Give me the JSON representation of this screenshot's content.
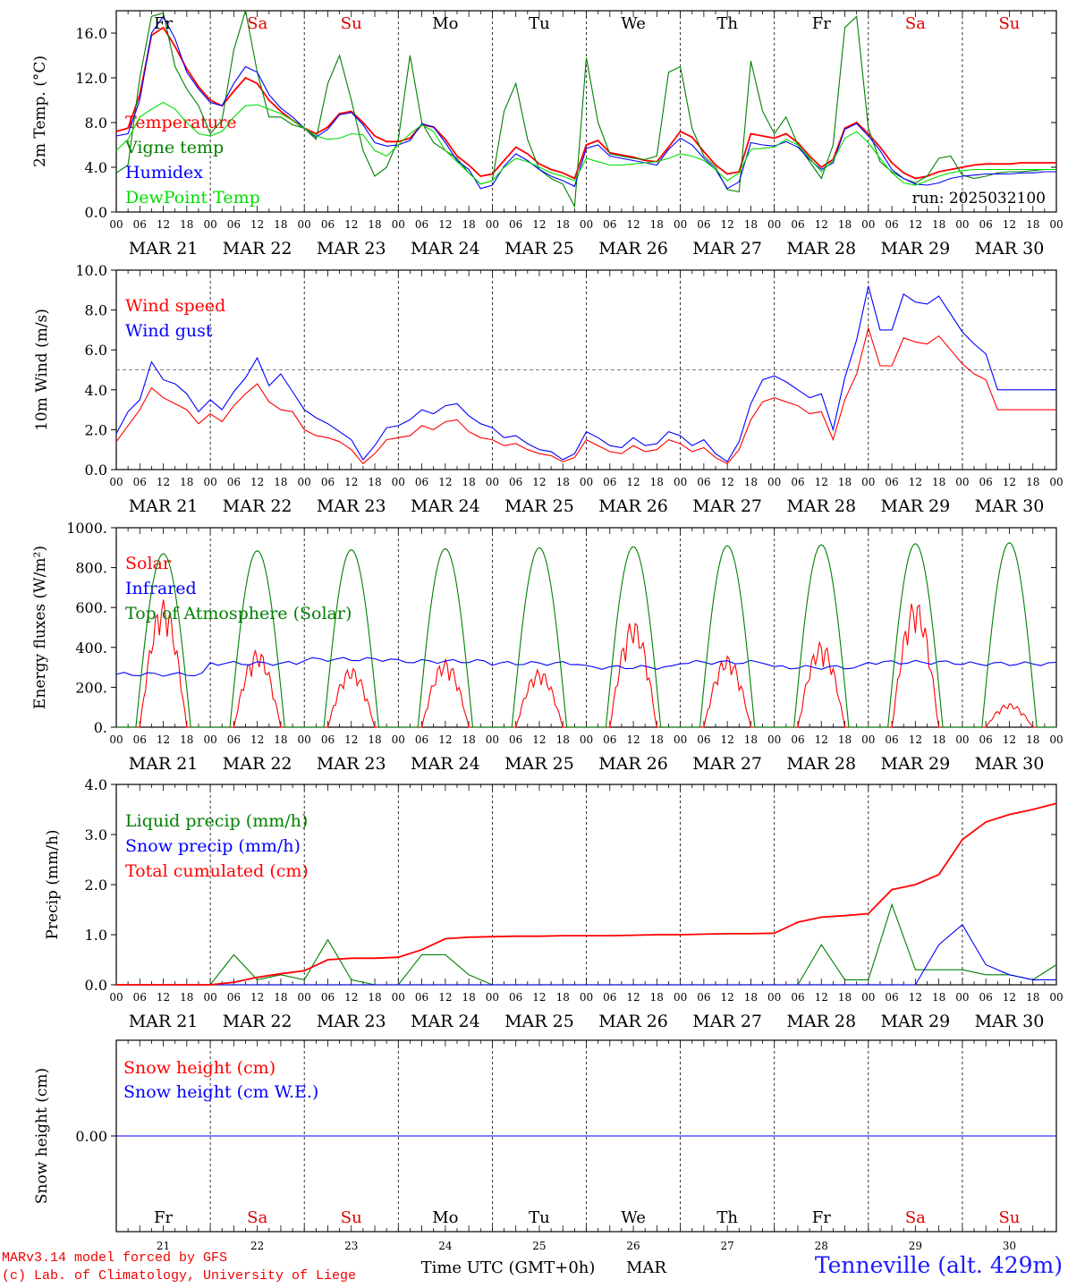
{
  "footer": {
    "credit_line1": "MARv3.14 model forced by GFS",
    "credit_line2": "(c) Lab. of Climatology, University of Liege",
    "location": "Tenneville (alt. 429m)"
  },
  "hour_ticks": [
    "00",
    "06",
    "12",
    "18"
  ],
  "date_labels": [
    "MAR 21",
    "MAR 22",
    "MAR 23",
    "MAR 24",
    "MAR 25",
    "MAR 26",
    "MAR 27",
    "MAR 28",
    "MAR 29",
    "MAR 30"
  ],
  "day_labels": [
    "Fr",
    "Sa",
    "Su",
    "Mo",
    "Tu",
    "We",
    "Th",
    "Fr",
    "Sa",
    "Su"
  ],
  "day_colors": [
    "#000000",
    "#e00000",
    "#e00000",
    "#000000",
    "#000000",
    "#000000",
    "#000000",
    "#000000",
    "#e00000",
    "#e00000"
  ],
  "bottom_day_numbers": [
    "21",
    "22",
    "23",
    "24",
    "25",
    "26",
    "27",
    "28",
    "29",
    "30"
  ],
  "bottom_axis_label": "Time UTC (GMT+0h)",
  "bottom_month_label": "MAR",
  "colors": {
    "red": "#ff0000",
    "green": "#008000",
    "blue": "#0000ff",
    "lightgreen": "#00dd00"
  },
  "chart_data": [
    {
      "type": "line",
      "id": "temp",
      "ylabel": "2m Temp. (°C)",
      "ylim": [
        0,
        18
      ],
      "yticks": [
        0,
        4,
        8,
        12,
        16
      ],
      "ytick_labels": [
        "0.0",
        "4.0",
        "8.0",
        "12.0",
        "16.0"
      ],
      "annotation": "run: 2025032100",
      "x_hours": [
        0,
        3,
        6,
        9,
        12,
        15,
        18,
        21,
        24,
        27,
        30,
        33,
        36,
        39,
        42,
        45,
        48,
        51,
        54,
        57,
        60,
        63,
        66,
        69,
        72,
        75,
        78,
        81,
        84,
        87,
        90,
        93,
        96,
        99,
        102,
        105,
        108,
        111,
        114,
        117,
        120,
        123,
        126,
        129,
        132,
        135,
        138,
        141,
        144,
        147,
        150,
        153,
        156,
        159,
        162,
        165,
        168,
        171,
        174,
        177,
        180,
        183,
        186,
        189,
        192,
        195,
        198,
        201,
        204,
        207,
        210,
        213,
        216,
        219,
        222,
        225,
        228,
        231,
        234,
        237,
        240
      ],
      "series": [
        {
          "name": "Temperature",
          "color": "#ff0000",
          "values": [
            7.2,
            7.5,
            10.5,
            15.8,
            16.5,
            14.8,
            12.8,
            11.2,
            10.0,
            9.5,
            10.8,
            12.0,
            11.5,
            10.0,
            9.0,
            8.2,
            7.5,
            7.0,
            7.6,
            8.8,
            9.0,
            8.0,
            6.8,
            6.3,
            6.3,
            6.6,
            7.8,
            7.6,
            6.5,
            5.0,
            4.2,
            3.2,
            3.4,
            4.6,
            5.8,
            5.2,
            4.3,
            3.8,
            3.5,
            3.0,
            6.0,
            6.4,
            5.3,
            5.1,
            4.9,
            4.6,
            4.5,
            5.8,
            7.2,
            6.7,
            5.4,
            4.2,
            3.4,
            3.6,
            7.0,
            6.8,
            6.6,
            7.0,
            6.2,
            5.0,
            4.0,
            4.7,
            7.5,
            8.0,
            7.0,
            5.8,
            4.4,
            3.5,
            3.0,
            3.2,
            3.6,
            3.8,
            4.0,
            4.2,
            4.3,
            4.3,
            4.3,
            4.4,
            4.4,
            4.4,
            4.4
          ]
        },
        {
          "name": "Vigne temp",
          "color": "#008000",
          "values": [
            3.5,
            4.2,
            12.0,
            17.5,
            17.8,
            13.0,
            11.0,
            9.5,
            7.0,
            8.2,
            14.5,
            18.0,
            12.5,
            8.5,
            8.5,
            7.8,
            7.5,
            6.5,
            11.5,
            14.0,
            10.0,
            5.5,
            3.2,
            4.0,
            6.5,
            14.0,
            8.0,
            6.2,
            5.5,
            4.8,
            3.5,
            2.5,
            2.8,
            9.0,
            11.5,
            6.5,
            3.8,
            3.0,
            2.5,
            0.5,
            13.8,
            8.0,
            5.2,
            5.0,
            4.8,
            4.7,
            5.0,
            12.5,
            13.0,
            7.5,
            5.0,
            4.0,
            2.0,
            1.8,
            13.5,
            9.0,
            7.0,
            8.5,
            6.0,
            4.5,
            3.0,
            6.0,
            16.5,
            17.5,
            7.5,
            4.5,
            3.6,
            3.0,
            2.6,
            3.2,
            4.8,
            5.0,
            3.3,
            3.0,
            3.2,
            3.5,
            3.6,
            3.6,
            3.7,
            3.8,
            3.8
          ]
        },
        {
          "name": "Humidex",
          "color": "#0000ff",
          "values": [
            6.8,
            7.0,
            10.0,
            16.0,
            17.5,
            15.5,
            12.5,
            11.0,
            9.8,
            9.5,
            11.5,
            13.0,
            12.5,
            10.5,
            9.3,
            8.5,
            7.5,
            6.7,
            7.4,
            8.7,
            8.9,
            7.8,
            6.2,
            5.9,
            6.0,
            6.4,
            7.9,
            7.6,
            6.2,
            4.6,
            3.8,
            2.1,
            2.4,
            4.1,
            5.2,
            4.6,
            3.8,
            3.2,
            2.8,
            2.3,
            5.7,
            6.0,
            5.0,
            4.8,
            4.6,
            4.4,
            4.2,
            5.6,
            6.6,
            6.0,
            4.8,
            3.8,
            2.1,
            2.7,
            6.2,
            6.0,
            5.9,
            6.3,
            5.8,
            4.7,
            3.8,
            4.4,
            7.4,
            7.9,
            6.8,
            5.5,
            3.8,
            3.0,
            2.5,
            2.4,
            2.6,
            3.0,
            3.2,
            3.3,
            3.4,
            3.4,
            3.4,
            3.5,
            3.5,
            3.6,
            3.6
          ]
        },
        {
          "name": "DewPoint Temp",
          "color": "#00dd00",
          "values": [
            5.5,
            6.5,
            8.5,
            9.2,
            9.8,
            9.2,
            8.0,
            7.0,
            6.8,
            7.2,
            8.5,
            9.5,
            9.6,
            9.2,
            8.8,
            8.2,
            7.5,
            6.8,
            6.5,
            6.6,
            7.0,
            6.9,
            5.5,
            5.0,
            6.0,
            7.0,
            7.8,
            7.2,
            5.5,
            4.5,
            3.5,
            2.5,
            2.8,
            4.0,
            4.8,
            4.5,
            4.0,
            3.5,
            3.2,
            2.8,
            4.8,
            4.5,
            4.2,
            4.2,
            4.3,
            4.4,
            4.5,
            4.8,
            5.2,
            5.0,
            4.6,
            3.8,
            2.8,
            3.5,
            5.6,
            5.7,
            5.8,
            6.5,
            6.0,
            4.8,
            3.6,
            4.6,
            6.6,
            7.2,
            6.2,
            4.8,
            3.5,
            2.6,
            2.4,
            2.8,
            3.2,
            3.5,
            3.7,
            3.8,
            3.8,
            3.8,
            3.8,
            3.8,
            3.8,
            3.8,
            3.8
          ]
        }
      ]
    },
    {
      "type": "line",
      "id": "wind",
      "ylabel": "10m Wind (m/s)",
      "ylim": [
        0,
        10
      ],
      "yticks": [
        0,
        2,
        4,
        6,
        8,
        10
      ],
      "ytick_labels": [
        "0.0",
        "2.0",
        "4.0",
        "6.0",
        "8.0",
        "10.0"
      ],
      "reference_line": 5.0,
      "x_hours": [
        0,
        3,
        6,
        9,
        12,
        15,
        18,
        21,
        24,
        27,
        30,
        33,
        36,
        39,
        42,
        45,
        48,
        51,
        54,
        57,
        60,
        63,
        66,
        69,
        72,
        75,
        78,
        81,
        84,
        87,
        90,
        93,
        96,
        99,
        102,
        105,
        108,
        111,
        114,
        117,
        120,
        123,
        126,
        129,
        132,
        135,
        138,
        141,
        144,
        147,
        150,
        153,
        156,
        159,
        162,
        165,
        168,
        171,
        174,
        177,
        180,
        183,
        186,
        189,
        192,
        195,
        198,
        201,
        204,
        207,
        210,
        213,
        216,
        219,
        222,
        225,
        228,
        231,
        234,
        237,
        240
      ],
      "series": [
        {
          "name": "Wind speed",
          "color": "#ff0000",
          "values": [
            1.4,
            2.2,
            3.0,
            4.1,
            3.6,
            3.3,
            3.0,
            2.3,
            2.8,
            2.4,
            3.2,
            3.8,
            4.3,
            3.4,
            3.0,
            2.9,
            2.0,
            1.7,
            1.6,
            1.4,
            1.0,
            0.3,
            0.8,
            1.5,
            1.6,
            1.7,
            2.2,
            2.0,
            2.4,
            2.5,
            1.9,
            1.6,
            1.5,
            1.2,
            1.3,
            1.0,
            0.8,
            0.7,
            0.4,
            0.6,
            1.5,
            1.2,
            0.9,
            0.8,
            1.2,
            0.9,
            1.0,
            1.5,
            1.3,
            0.9,
            1.1,
            0.6,
            0.3,
            1.0,
            2.5,
            3.4,
            3.6,
            3.4,
            3.2,
            2.8,
            2.9,
            1.5,
            3.5,
            4.8,
            7.1,
            5.2,
            5.2,
            6.6,
            6.4,
            6.3,
            6.7,
            6.0,
            5.3,
            4.8,
            4.5,
            3.0,
            3.0,
            3.0,
            3.0,
            3.0,
            3.0
          ]
        },
        {
          "name": "Wind gust",
          "color": "#0000ff",
          "values": [
            1.8,
            2.9,
            3.5,
            5.4,
            4.5,
            4.3,
            3.8,
            2.9,
            3.5,
            3.0,
            3.9,
            4.6,
            5.6,
            4.2,
            4.8,
            3.9,
            3.0,
            2.6,
            2.3,
            1.9,
            1.5,
            0.5,
            1.2,
            2.1,
            2.2,
            2.5,
            3.0,
            2.8,
            3.2,
            3.3,
            2.7,
            2.3,
            2.1,
            1.6,
            1.7,
            1.3,
            1.0,
            0.9,
            0.5,
            0.8,
            1.9,
            1.6,
            1.2,
            1.1,
            1.6,
            1.2,
            1.3,
            1.9,
            1.7,
            1.2,
            1.5,
            0.8,
            0.4,
            1.4,
            3.3,
            4.5,
            4.7,
            4.4,
            4.0,
            3.6,
            3.8,
            2.0,
            4.6,
            6.5,
            9.2,
            7.0,
            7.0,
            8.8,
            8.4,
            8.3,
            8.7,
            7.8,
            6.9,
            6.3,
            5.8,
            4.0,
            4.0,
            4.0,
            4.0,
            4.0,
            4.0
          ]
        }
      ]
    },
    {
      "type": "line",
      "id": "energy",
      "ylabel": "Energy fluxes (W/m²)",
      "ylim": [
        0,
        1000
      ],
      "yticks": [
        0,
        200,
        400,
        600,
        800,
        1000
      ],
      "ytick_labels": [
        "0.",
        "200.",
        "400.",
        "600.",
        "800.",
        "1000."
      ],
      "series": [
        {
          "name": "Solar",
          "color": "#ff0000",
          "daily_peaks": [
            640,
            390,
            300,
            340,
            290,
            540,
            360,
            430,
            640,
            120
          ]
        },
        {
          "name": "Infrared",
          "color": "#0000ff",
          "values_daily": [
            265,
            320,
            340,
            330,
            320,
            300,
            325,
            300,
            325,
            318
          ]
        },
        {
          "name": "Top of Atmosphere (Solar)",
          "color": "#008000",
          "daily_peaks": [
            870,
            885,
            890,
            895,
            900,
            905,
            910,
            915,
            920,
            925
          ]
        }
      ]
    },
    {
      "type": "line",
      "id": "precip",
      "ylabel": "Precip (mm/h)",
      "ylim": [
        0,
        4
      ],
      "yticks": [
        0,
        1,
        2,
        3,
        4
      ],
      "ytick_labels": [
        "0.0",
        "1.0",
        "2.0",
        "3.0",
        "4.0"
      ],
      "x_hours": [
        0,
        6,
        12,
        18,
        24,
        30,
        36,
        42,
        48,
        54,
        60,
        66,
        72,
        78,
        84,
        90,
        96,
        102,
        108,
        114,
        120,
        126,
        132,
        138,
        144,
        150,
        156,
        162,
        168,
        174,
        180,
        186,
        192,
        198,
        204,
        210,
        216,
        222,
        228,
        234,
        240
      ],
      "series": [
        {
          "name": "Liquid precip (mm/h)",
          "color": "#008000",
          "values": [
            0,
            0,
            0,
            0,
            0,
            0.6,
            0.1,
            0.2,
            0.1,
            0.9,
            0.1,
            0,
            0,
            0.6,
            0.6,
            0.2,
            0,
            0,
            0,
            0,
            0,
            0,
            0,
            0,
            0,
            0,
            0,
            0,
            0,
            0,
            0.8,
            0.1,
            0.1,
            1.6,
            0.3,
            0.3,
            0.3,
            0.2,
            0.2,
            0.1,
            0.4
          ]
        },
        {
          "name": "Snow precip (mm/h)",
          "color": "#0000ff",
          "values": [
            0,
            0,
            0,
            0,
            0,
            0,
            0,
            0,
            0,
            0,
            0,
            0,
            0,
            0,
            0,
            0,
            0,
            0,
            0,
            0,
            0,
            0,
            0,
            0,
            0,
            0,
            0,
            0,
            0,
            0,
            0,
            0,
            0,
            0,
            0,
            0.8,
            1.2,
            0.4,
            0.2,
            0.1,
            0.1
          ]
        },
        {
          "name": "Total cumulated (cm)",
          "color": "#ff0000",
          "values": [
            0,
            0,
            0,
            0,
            0,
            0.05,
            0.15,
            0.22,
            0.28,
            0.5,
            0.53,
            0.53,
            0.55,
            0.7,
            0.92,
            0.95,
            0.96,
            0.97,
            0.97,
            0.98,
            0.98,
            0.98,
            0.99,
            1.0,
            1.0,
            1.01,
            1.02,
            1.02,
            1.03,
            1.25,
            1.35,
            1.38,
            1.42,
            1.9,
            2.0,
            2.2,
            2.9,
            3.25,
            3.4,
            3.5,
            3.62
          ]
        }
      ]
    },
    {
      "type": "line",
      "id": "snow",
      "ylabel": "Snow height (cm)",
      "yticks": [
        0
      ],
      "ytick_labels": [
        "0.00"
      ],
      "series": [
        {
          "name": "Snow height (cm)",
          "color": "#ff0000",
          "values": [
            0,
            0
          ]
        },
        {
          "name": "Snow height (cm W.E.)",
          "color": "#0000ff",
          "values": [
            0,
            0
          ]
        }
      ]
    }
  ]
}
